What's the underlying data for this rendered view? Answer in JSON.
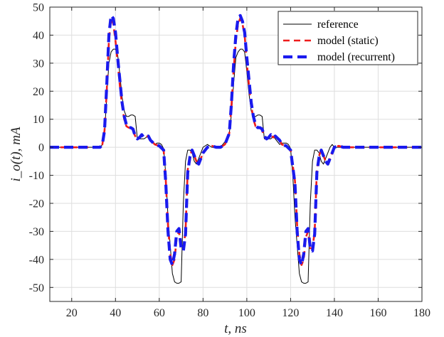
{
  "chart_data": {
    "type": "line",
    "title": "",
    "xlabel": "t, ns",
    "ylabel": "i_o(t), mA",
    "xlim": [
      10,
      180
    ],
    "ylim": [
      -55,
      50
    ],
    "xticks": [
      "20",
      "40",
      "60",
      "80",
      "100",
      "120",
      "140",
      "160",
      "180"
    ],
    "yticks": [
      "50",
      "40",
      "30",
      "20",
      "10",
      "0",
      "-10",
      "-20",
      "-30",
      "-40",
      "-50"
    ],
    "grid": true,
    "legend_position": "top-right",
    "series": [
      {
        "name": "reference",
        "color": "#000000",
        "style": "solid",
        "x": [
          10,
          33,
          34,
          35,
          36,
          37,
          38,
          39,
          40,
          41,
          42,
          43,
          44,
          45,
          46,
          47,
          48,
          49,
          50,
          51,
          52,
          53,
          55,
          56,
          58,
          59,
          60,
          61,
          62,
          63,
          64,
          65,
          66,
          67,
          68,
          69,
          70,
          71,
          72,
          73,
          74,
          75,
          76,
          77,
          78,
          79,
          80,
          82,
          84,
          86,
          88,
          90,
          92,
          93,
          94,
          95,
          96,
          97,
          98,
          99,
          100,
          101,
          102,
          103,
          104,
          105,
          106,
          107,
          108,
          109,
          110,
          111,
          112,
          113,
          115,
          116,
          118,
          119,
          120,
          121,
          122,
          123,
          124,
          125,
          126,
          127,
          128,
          129,
          130,
          131,
          132,
          133,
          134,
          135,
          136,
          137,
          138,
          139,
          140,
          142,
          144,
          146,
          150,
          160,
          170,
          180
        ],
        "y": [
          0,
          0,
          1,
          5,
          18,
          30,
          34,
          35,
          35,
          33,
          26,
          18,
          13,
          11,
          11,
          11.5,
          11.5,
          11,
          3,
          3,
          3,
          3,
          4,
          3,
          1,
          1.5,
          1.5,
          1,
          -0.5,
          -10,
          -25,
          -35,
          -45,
          -48,
          -48.5,
          -48.5,
          -48,
          -20,
          -5,
          -1,
          -1,
          -2,
          -5,
          -6,
          -4,
          -2,
          0,
          1,
          0,
          0,
          0,
          2,
          5,
          12,
          23,
          32,
          34,
          35,
          35,
          34,
          27,
          19,
          13,
          11,
          11,
          11.5,
          11.5,
          11,
          3,
          3,
          3,
          3,
          4,
          3,
          1,
          1.5,
          1.5,
          1,
          -0.5,
          -10,
          -25,
          -35,
          -45,
          -48,
          -48.5,
          -48.5,
          -48,
          -20,
          -5,
          -1,
          -1,
          -2,
          -5,
          -6,
          -4,
          -2,
          0,
          1,
          0,
          0,
          0,
          0,
          0,
          0,
          0,
          0
        ]
      },
      {
        "name": "model (static)",
        "color": "#ee1c1c",
        "style": "dashed",
        "x": [
          10,
          33,
          34,
          35,
          36,
          37,
          38,
          39,
          40,
          41,
          42,
          43,
          44,
          45,
          46,
          47,
          48,
          49,
          50,
          51,
          52,
          53,
          55,
          56,
          58,
          60,
          62,
          63,
          64,
          65,
          66,
          67,
          68,
          69,
          70,
          71,
          72,
          73,
          74,
          75,
          76,
          77,
          78,
          79,
          80,
          82,
          84,
          86,
          88,
          90,
          92,
          93,
          94,
          95,
          96,
          97,
          98,
          99,
          100,
          101,
          102,
          103,
          104,
          105,
          106,
          107,
          108,
          109,
          110,
          111,
          112,
          113,
          115,
          116,
          118,
          120,
          122,
          123,
          124,
          125,
          126,
          127,
          128,
          129,
          130,
          131,
          132,
          133,
          134,
          135,
          136,
          137,
          138,
          139,
          140,
          142,
          144,
          146,
          150,
          160,
          170,
          180
        ],
        "y": [
          0,
          0,
          1,
          6,
          20,
          38,
          46,
          44,
          38,
          30,
          22,
          15,
          10,
          7.5,
          7,
          7,
          6,
          4,
          3,
          3.5,
          4.5,
          3.5,
          4,
          2.5,
          1,
          0.5,
          -1,
          -12,
          -28,
          -38,
          -42,
          -40,
          -32,
          -30,
          -36,
          -36,
          -30,
          -8,
          -3,
          -1,
          -3,
          -5,
          -6,
          -4,
          -2,
          0,
          0.5,
          0,
          0,
          1,
          5,
          15,
          28,
          38,
          44,
          46,
          44,
          40,
          30,
          22,
          15,
          10,
          7.5,
          7,
          7,
          6,
          4,
          3,
          3.5,
          4.5,
          3.5,
          4,
          2.5,
          1,
          0.5,
          -1,
          -12,
          -28,
          -38,
          -42,
          -40,
          -32,
          -30,
          -36,
          -36,
          -30,
          -8,
          -3,
          -1,
          -3,
          -5,
          -6,
          -4,
          -2,
          0,
          0.5,
          0,
          0,
          0,
          0,
          0,
          0
        ]
      },
      {
        "name": "model (recurrent)",
        "color": "#1a1aee",
        "style": "dashed-thick",
        "x": [
          10,
          33,
          34,
          35,
          36,
          37,
          38,
          39,
          40,
          41,
          42,
          43,
          44,
          45,
          46,
          47,
          48,
          49,
          50,
          51,
          52,
          53,
          55,
          56,
          58,
          60,
          62,
          63,
          64,
          65,
          66,
          67,
          68,
          69,
          70,
          71,
          72,
          73,
          74,
          75,
          76,
          77,
          78,
          79,
          80,
          82,
          84,
          86,
          88,
          90,
          92,
          93,
          94,
          95,
          96,
          97,
          98,
          99,
          100,
          101,
          102,
          103,
          104,
          105,
          106,
          107,
          108,
          109,
          110,
          111,
          112,
          113,
          115,
          116,
          118,
          120,
          122,
          123,
          124,
          125,
          126,
          127,
          128,
          129,
          130,
          131,
          132,
          133,
          134,
          135,
          136,
          137,
          138,
          139,
          140,
          142,
          144,
          146,
          150,
          160,
          170,
          180
        ],
        "y": [
          0,
          0,
          1,
          6,
          22,
          40,
          47,
          46,
          41,
          32,
          24,
          16,
          11,
          8,
          7,
          7,
          6.5,
          4,
          3,
          3.5,
          4.5,
          3.5,
          4,
          2.5,
          1,
          0.5,
          -1,
          -13,
          -30,
          -40,
          -42,
          -38,
          -30,
          -29,
          -36,
          -37,
          -31,
          -9,
          -3.5,
          -1,
          -3,
          -5,
          -6,
          -4,
          -2,
          0,
          0.5,
          0,
          0,
          1,
          5,
          16,
          30,
          40,
          46,
          47,
          45,
          41,
          32,
          24,
          16,
          11,
          8,
          7,
          7,
          6.5,
          4,
          3,
          3.5,
          4.5,
          3.5,
          4,
          2.5,
          1,
          0.5,
          -1,
          -13,
          -30,
          -40,
          -42,
          -38,
          -30,
          -29,
          -36,
          -37,
          -31,
          -9,
          -3.5,
          -1,
          -3,
          -5,
          -6,
          -4,
          -2,
          0,
          0.5,
          0,
          0,
          0,
          0,
          0,
          0
        ]
      }
    ]
  }
}
